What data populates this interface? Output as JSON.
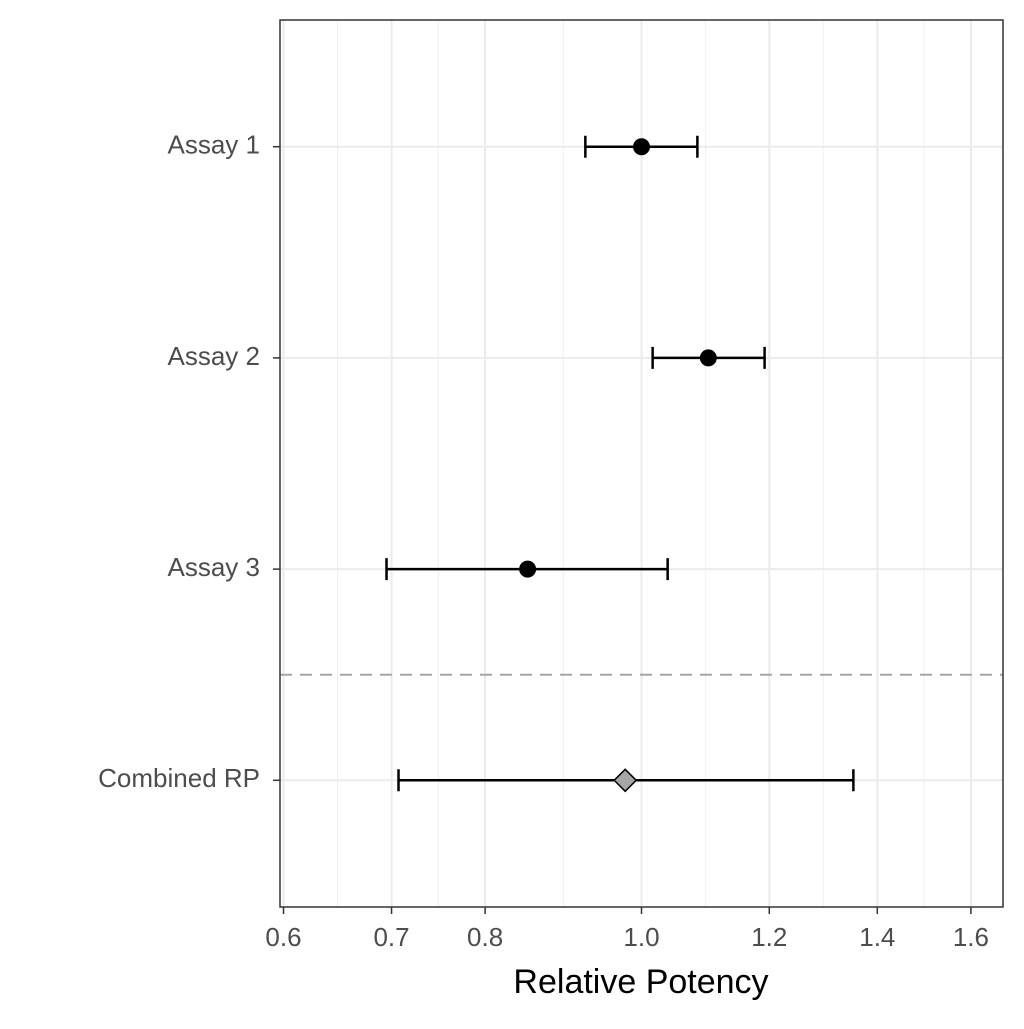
{
  "chart_data": {
    "type": "forest",
    "xlabel": "Relative Potency",
    "categories": [
      "Assay 1",
      "Assay 2",
      "Assay 3",
      "Combined RP"
    ],
    "values": [
      1.0,
      1.1,
      0.85,
      0.977
    ],
    "lower": [
      0.923,
      1.016,
      0.695,
      0.707
    ],
    "upper": [
      1.083,
      1.192,
      1.038,
      1.353
    ],
    "markers": [
      "circle",
      "circle",
      "circle",
      "diamond"
    ],
    "colors": [
      "#000000",
      "#000000",
      "#000000",
      "#a6a6a6"
    ],
    "xlim": [
      0.597,
      1.675
    ],
    "xticks": [
      0.6,
      0.7,
      0.8,
      {
        "value": 1,
        "label": "1.0"
      },
      1.2,
      1.4,
      1.6
    ],
    "log_x": true,
    "grid": true,
    "minor_grid": true
  }
}
